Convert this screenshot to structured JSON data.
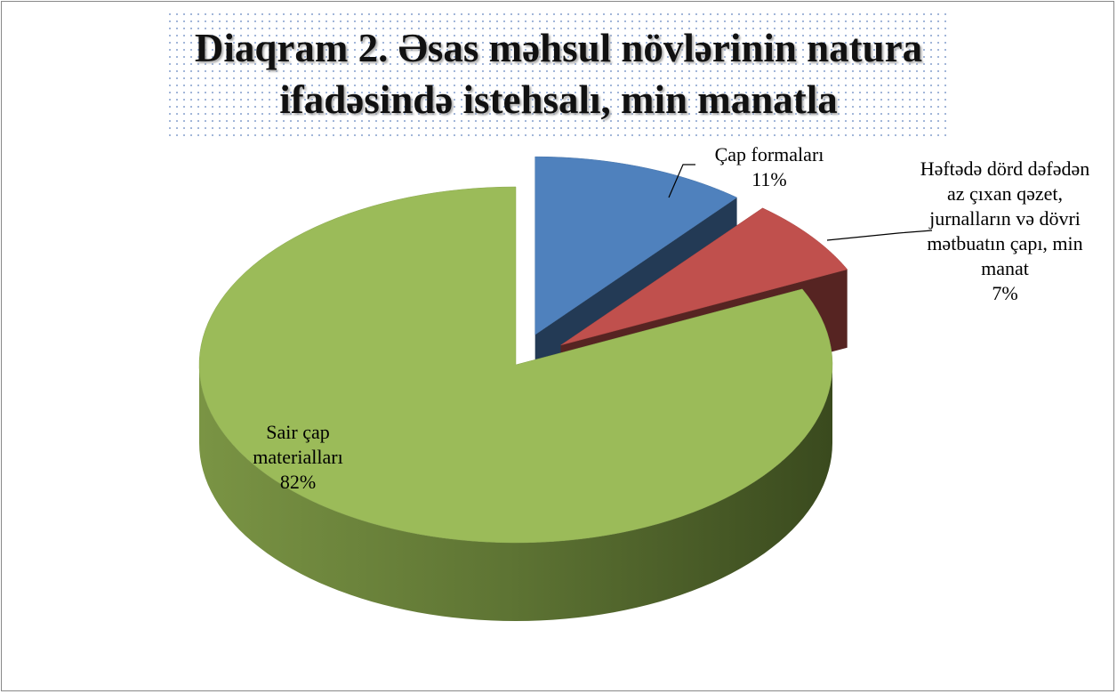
{
  "chart_data": {
    "type": "pie",
    "title": "Diaqram 2. Əsas məhsul növlərinin natura ifadəsində istehsalı, min manatla",
    "categories": [
      "Çap formaları",
      "Həftədə dörd dəfədən az çıxan qəzet, jurnalların və dövri mətbuatın çapı, min manat",
      "Sair çap materialları"
    ],
    "values": [
      11,
      7,
      82
    ],
    "value_labels": [
      "11%",
      "7%",
      "82%"
    ],
    "colors": [
      "#4f81bd",
      "#c0504d",
      "#9bbb59"
    ]
  }
}
